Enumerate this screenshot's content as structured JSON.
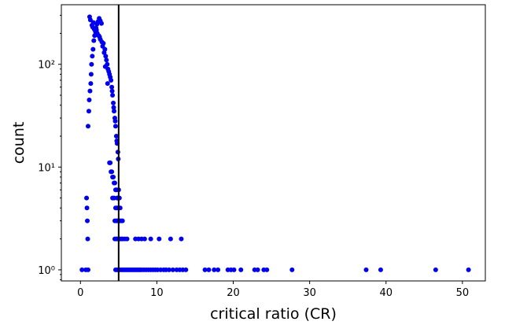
{
  "chart_data": {
    "type": "scatter",
    "xlabel": "critical ratio (CR)",
    "ylabel": "count",
    "xlim": [
      -2.5,
      53
    ],
    "ylim": [
      0.78,
      380
    ],
    "yscale": "log",
    "grid": false,
    "xticks": [
      0,
      10,
      20,
      30,
      40,
      50
    ],
    "xtick_labels": [
      "0",
      "10",
      "20",
      "30",
      "40",
      "50"
    ],
    "yticks": [
      1,
      10,
      100
    ],
    "ytick_labels": [
      "10⁰",
      "10¹",
      "10²"
    ],
    "threshold_line": {
      "x": 5,
      "color": "#000000"
    },
    "marker_color": "#0000ee",
    "points": [
      [
        1.2,
        290
      ],
      [
        1.3,
        270
      ],
      [
        1.5,
        240
      ],
      [
        1.6,
        230
      ],
      [
        1.8,
        220
      ],
      [
        2.0,
        205
      ],
      [
        2.2,
        200
      ],
      [
        2.4,
        190
      ],
      [
        2.6,
        175
      ],
      [
        2.8,
        165
      ],
      [
        3.0,
        160
      ],
      [
        3.2,
        140
      ],
      [
        3.3,
        120
      ],
      [
        3.5,
        100
      ],
      [
        3.6,
        90
      ],
      [
        3.8,
        80
      ],
      [
        4.0,
        70
      ],
      [
        4.1,
        60
      ],
      [
        4.2,
        50
      ],
      [
        4.3,
        42
      ],
      [
        4.4,
        35
      ],
      [
        4.5,
        30
      ],
      [
        4.6,
        25
      ],
      [
        4.7,
        20
      ],
      [
        4.8,
        17
      ],
      [
        4.9,
        14
      ],
      [
        4.95,
        12
      ],
      [
        1.7,
        255
      ],
      [
        2.1,
        215
      ],
      [
        2.5,
        185
      ],
      [
        2.9,
        150
      ],
      [
        3.1,
        130
      ],
      [
        3.4,
        110
      ],
      [
        3.7,
        85
      ],
      [
        3.9,
        75
      ],
      [
        4.15,
        55
      ],
      [
        4.35,
        38
      ],
      [
        4.55,
        28
      ],
      [
        4.75,
        18
      ],
      [
        1.0,
        25
      ],
      [
        1.1,
        35
      ],
      [
        1.15,
        45
      ],
      [
        1.25,
        55
      ],
      [
        1.35,
        65
      ],
      [
        1.4,
        80
      ],
      [
        1.45,
        100
      ],
      [
        1.55,
        120
      ],
      [
        1.65,
        140
      ],
      [
        1.75,
        170
      ],
      [
        1.85,
        190
      ],
      [
        1.95,
        210
      ],
      [
        2.05,
        225
      ],
      [
        2.15,
        245
      ],
      [
        2.3,
        260
      ],
      [
        2.45,
        280
      ],
      [
        2.6,
        265
      ],
      [
        2.75,
        250
      ],
      [
        3.25,
        95
      ],
      [
        3.55,
        65
      ],
      [
        0.8,
        5
      ],
      [
        0.85,
        4
      ],
      [
        0.9,
        3
      ],
      [
        0.95,
        2
      ],
      [
        3.8,
        11
      ],
      [
        3.9,
        11
      ],
      [
        4.0,
        9
      ],
      [
        4.1,
        9
      ],
      [
        4.2,
        8
      ],
      [
        4.3,
        8
      ],
      [
        4.4,
        7
      ],
      [
        4.5,
        7
      ],
      [
        4.6,
        6
      ],
      [
        4.7,
        6
      ],
      [
        4.8,
        5
      ],
      [
        4.9,
        5
      ],
      [
        5.0,
        6
      ],
      [
        5.1,
        5
      ],
      [
        4.2,
        5
      ],
      [
        4.4,
        5
      ],
      [
        4.6,
        4
      ],
      [
        4.8,
        4
      ],
      [
        5.0,
        4
      ],
      [
        5.2,
        4
      ],
      [
        4.5,
        3
      ],
      [
        4.7,
        3
      ],
      [
        4.9,
        3
      ],
      [
        5.1,
        3
      ],
      [
        5.3,
        3
      ],
      [
        5.5,
        3
      ],
      [
        4.5,
        2
      ],
      [
        4.7,
        2
      ],
      [
        4.9,
        2
      ],
      [
        5.1,
        2
      ],
      [
        5.3,
        2
      ],
      [
        5.5,
        2
      ],
      [
        5.8,
        2
      ],
      [
        6.1,
        2
      ],
      [
        7.2,
        2
      ],
      [
        7.6,
        2
      ],
      [
        8.0,
        2
      ],
      [
        8.4,
        2
      ],
      [
        9.2,
        2
      ],
      [
        10.3,
        2
      ],
      [
        11.8,
        2
      ],
      [
        13.2,
        2
      ],
      [
        0.2,
        1
      ],
      [
        0.7,
        1
      ],
      [
        1.0,
        1
      ],
      [
        4.6,
        1
      ],
      [
        4.8,
        1
      ],
      [
        5.0,
        1
      ],
      [
        5.2,
        1
      ],
      [
        5.4,
        1
      ],
      [
        5.6,
        1
      ],
      [
        5.8,
        1
      ],
      [
        6.0,
        1
      ],
      [
        6.2,
        1
      ],
      [
        6.4,
        1
      ],
      [
        6.6,
        1
      ],
      [
        6.8,
        1
      ],
      [
        7.0,
        1
      ],
      [
        7.2,
        1
      ],
      [
        7.4,
        1
      ],
      [
        7.6,
        1
      ],
      [
        7.8,
        1
      ],
      [
        8.0,
        1
      ],
      [
        8.3,
        1
      ],
      [
        8.6,
        1
      ],
      [
        8.9,
        1
      ],
      [
        9.2,
        1
      ],
      [
        9.5,
        1
      ],
      [
        9.8,
        1
      ],
      [
        10.1,
        1
      ],
      [
        10.5,
        1
      ],
      [
        10.9,
        1
      ],
      [
        11.2,
        1
      ],
      [
        11.6,
        1
      ],
      [
        12.1,
        1
      ],
      [
        12.6,
        1
      ],
      [
        13.0,
        1
      ],
      [
        13.4,
        1
      ],
      [
        13.8,
        1
      ],
      [
        16.3,
        1
      ],
      [
        16.8,
        1
      ],
      [
        17.5,
        1
      ],
      [
        18.0,
        1
      ],
      [
        19.3,
        1
      ],
      [
        19.7,
        1
      ],
      [
        20.1,
        1
      ],
      [
        21.0,
        1
      ],
      [
        22.8,
        1
      ],
      [
        23.2,
        1
      ],
      [
        24.0,
        1
      ],
      [
        24.4,
        1
      ],
      [
        27.7,
        1
      ],
      [
        37.4,
        1
      ],
      [
        39.3,
        1
      ],
      [
        46.5,
        1
      ],
      [
        50.8,
        1
      ]
    ]
  }
}
